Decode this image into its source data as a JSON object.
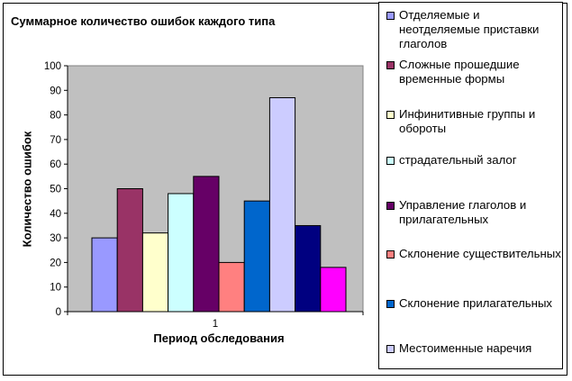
{
  "chart_data": {
    "type": "bar",
    "title": "Суммарное количество ошибок каждого типа",
    "xlabel": "Период обследования",
    "ylabel": "Количество ошибок",
    "categories": [
      "1"
    ],
    "ylim": [
      0,
      100
    ],
    "yticks": [
      0,
      10,
      20,
      30,
      40,
      50,
      60,
      70,
      80,
      90,
      100
    ],
    "grid": false,
    "plot_background": "#c0c0c0",
    "legend_position": "right",
    "series": [
      {
        "name": "Отделяемые и неотделяемые приставки глаголов",
        "values": [
          30
        ],
        "color": "#9999ff"
      },
      {
        "name": "Сложные прошедшие временные формы",
        "values": [
          50
        ],
        "color": "#993366"
      },
      {
        "name": "Инфинитивные группы и обороты",
        "values": [
          32
        ],
        "color": "#ffffcc"
      },
      {
        "name": "страдательный залог",
        "values": [
          48
        ],
        "color": "#ccffff"
      },
      {
        "name": "Управление глаголов и прилагательных",
        "values": [
          55
        ],
        "color": "#660066"
      },
      {
        "name": "Склонение существительных",
        "values": [
          20
        ],
        "color": "#ff8080"
      },
      {
        "name": "Склонение прилагательных",
        "values": [
          45
        ],
        "color": "#0066cc"
      },
      {
        "name": "Местоименные наречия",
        "values": [
          87
        ],
        "color": "#ccccff"
      },
      {
        "name": "",
        "values": [
          35
        ],
        "color": "#000080"
      },
      {
        "name": "",
        "values": [
          18
        ],
        "color": "#ff00ff"
      }
    ]
  }
}
